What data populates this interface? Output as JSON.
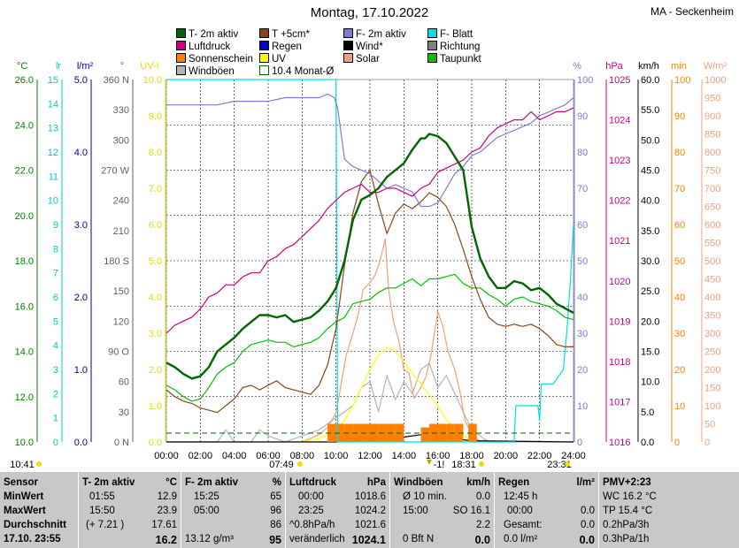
{
  "header": {
    "title": "Montag, 17.10.2022",
    "station": "MA - Seckenheim"
  },
  "legend": [
    {
      "label": "T- 2m aktiv",
      "color": "#006400",
      "kind": "filled"
    },
    {
      "label": "T +5cm*",
      "color": "#8b4513",
      "kind": "filled"
    },
    {
      "label": "F- 2m aktiv",
      "color": "#7b7bd6",
      "kind": "filled"
    },
    {
      "label": "F- Blatt",
      "color": "#00e0e0",
      "kind": "filled"
    },
    {
      "label": "Luftdruck",
      "color": "#d0007a",
      "kind": "filled"
    },
    {
      "label": "Regen",
      "color": "#0000d0",
      "kind": "filled"
    },
    {
      "label": "Wind*",
      "color": "#000000",
      "kind": "filled"
    },
    {
      "label": "Richtung",
      "color": "#808080",
      "kind": "filled"
    },
    {
      "label": "Sonnenschein",
      "color": "#ff8000",
      "kind": "filled"
    },
    {
      "label": "UV",
      "color": "#ffff00",
      "kind": "filled"
    },
    {
      "label": "Solar",
      "color": "#f0a080",
      "kind": "filled"
    },
    {
      "label": "Taupunkt",
      "color": "#00c000",
      "kind": "filled"
    },
    {
      "label": "Windböen",
      "color": "#b4b4b4",
      "kind": "filled"
    },
    {
      "label": "10.4 Monat-Ø",
      "color": "#006400",
      "kind": "hollow"
    }
  ],
  "axes_left": [
    {
      "unit": "°C",
      "color": "#008000",
      "ticks": [
        "26.0",
        "24.0",
        "22.0",
        "20.0",
        "18.0",
        "16.0",
        "14.0",
        "12.0",
        "10.0"
      ]
    },
    {
      "unit": "lr",
      "color": "#00c8c8",
      "ticks": [
        "15",
        "14",
        "13",
        "12",
        "11",
        "10",
        "9",
        "8",
        "7",
        "6",
        "5",
        "4",
        "3",
        "2",
        "1",
        "0"
      ]
    },
    {
      "unit": "l/m²",
      "color": "#0000a0",
      "ticks": [
        "5.0",
        "4.0",
        "3.0",
        "2.0",
        "1.0",
        "0.0"
      ]
    },
    {
      "unit": "°",
      "color": "#606060",
      "ticks": [
        "360 N",
        "330",
        "300",
        "270 W",
        "240",
        "210",
        "180 S",
        "150",
        "120",
        "90 O",
        "60",
        "30",
        "0 N"
      ]
    },
    {
      "unit": "UV-I",
      "color": "#e0e000",
      "ticks": [
        "10.0",
        "9.0",
        "8.0",
        "7.0",
        "6.0",
        "5.0",
        "4.0",
        "3.0",
        "2.0",
        "1.0",
        "0.0"
      ]
    }
  ],
  "axes_right": [
    {
      "unit": "%",
      "color": "#7b7bd6",
      "ticks": [
        "100",
        "90",
        "80",
        "70",
        "60",
        "50",
        "40",
        "30",
        "20",
        "10",
        "0"
      ]
    },
    {
      "unit": "hPa",
      "color": "#d0007a",
      "ticks": [
        "1025",
        "1024",
        "1023",
        "1022",
        "1021",
        "1020",
        "1019",
        "1018",
        "1017",
        "1016"
      ]
    },
    {
      "unit": "km/h",
      "color": "#000000",
      "ticks": [
        "60.0",
        "55.0",
        "50.0",
        "45.0",
        "40.0",
        "35.0",
        "30.0",
        "25.0",
        "20.0",
        "15.0",
        "10.0",
        "5.0",
        "0.0"
      ]
    },
    {
      "unit": "min",
      "color": "#ff8000",
      "ticks": [
        "100",
        "90",
        "80",
        "70",
        "60",
        "50",
        "40",
        "30",
        "20",
        "10",
        "0"
      ]
    },
    {
      "unit": "W/m²",
      "color": "#f0a080",
      "ticks": [
        "1000",
        "950",
        "900",
        "850",
        "800",
        "750",
        "700",
        "650",
        "600",
        "550",
        "500",
        "450",
        "400",
        "350",
        "300",
        "250",
        "200",
        "150",
        "100",
        "50",
        "0"
      ]
    }
  ],
  "time_axis": {
    "ticks": [
      "00:00",
      "02:00",
      "04:00",
      "06:00",
      "08:00",
      "10:00",
      "12:00",
      "14:00",
      "16:00",
      "18:00",
      "20:00",
      "22:00",
      "24:00"
    ]
  },
  "time_marks": {
    "moonrise": "10:41",
    "sunrise": "07:49",
    "wind_mark": "-1!",
    "sunset": "18:31",
    "moonset": "23:31"
  },
  "chart_data": {
    "type": "line",
    "x_unit": "hours",
    "xlim": [
      0,
      24
    ],
    "series": [
      {
        "name": "T- 2m aktiv",
        "axis": "°C",
        "color": "#006400",
        "ylim": [
          10,
          26
        ],
        "x": [
          0,
          0.5,
          1,
          1.5,
          2,
          2.5,
          3,
          3.5,
          4,
          4.5,
          5,
          5.5,
          6,
          6.5,
          7,
          7.5,
          8,
          8.5,
          9,
          9.5,
          10,
          10.5,
          11,
          11.5,
          12,
          12.5,
          13,
          13.5,
          14,
          14.5,
          15,
          15.25,
          15.5,
          16,
          16.5,
          17,
          17.5,
          18,
          18.5,
          19,
          19.5,
          20,
          20.5,
          21,
          21.5,
          22,
          22.5,
          23,
          23.5,
          24
        ],
        "y": [
          13.5,
          13.3,
          13.0,
          12.8,
          12.9,
          13.3,
          14.0,
          14.3,
          14.6,
          15.0,
          15.3,
          15.6,
          15.6,
          15.5,
          15.6,
          15.3,
          15.4,
          15.5,
          15.8,
          16.2,
          16.8,
          18.0,
          19.8,
          20.7,
          20.9,
          21.2,
          21.7,
          22.0,
          22.3,
          22.9,
          23.4,
          23.4,
          23.6,
          23.5,
          23.2,
          22.6,
          22.0,
          19.5,
          18.1,
          17.3,
          16.8,
          16.8,
          17.1,
          17.0,
          16.7,
          16.8,
          16.5,
          16.1,
          15.9,
          15.7
        ]
      },
      {
        "name": "T +5cm*",
        "axis": "°C",
        "color": "#8b4513",
        "ylim": [
          10,
          26
        ],
        "x": [
          0,
          0.5,
          1,
          1.5,
          2,
          2.5,
          3,
          3.5,
          4,
          4.5,
          5,
          5.5,
          6,
          6.5,
          7,
          7.5,
          8,
          8.5,
          9,
          9.5,
          10,
          10.5,
          11,
          11.5,
          12,
          12.5,
          13,
          13.5,
          14,
          14.5,
          15,
          15.5,
          16,
          16.5,
          17,
          17.5,
          18,
          18.5,
          19,
          19.5,
          20,
          20.5,
          21,
          21.5,
          22,
          22.5,
          23,
          23.5,
          24
        ],
        "y": [
          12.3,
          12.0,
          11.8,
          11.7,
          11.5,
          11.4,
          11.3,
          11.6,
          11.9,
          12.4,
          12.5,
          12.3,
          12.5,
          12.7,
          12.4,
          12.3,
          12.2,
          12.1,
          12.5,
          13.4,
          15.0,
          17.8,
          20.1,
          21.5,
          22.0,
          20.5,
          19.2,
          20.1,
          20.5,
          20.3,
          20.6,
          21.0,
          20.8,
          20.4,
          19.6,
          18.5,
          17.3,
          16.3,
          15.5,
          15.2,
          15.1,
          15.2,
          15.1,
          15.2,
          15.0,
          14.7,
          14.3,
          14.2,
          14.2
        ]
      },
      {
        "name": "F- 2m aktiv",
        "axis": "%",
        "color": "#7b7bd6",
        "ylim": [
          0,
          100
        ],
        "x": [
          0,
          1,
          2,
          3,
          4,
          5,
          6,
          7,
          8,
          9,
          9.5,
          9.9,
          10.1,
          10.5,
          11,
          11.5,
          12,
          12.5,
          13,
          13.5,
          14,
          14.5,
          15,
          15.5,
          16,
          16.5,
          17,
          17.5,
          18,
          18.5,
          19,
          19.5,
          20,
          20.5,
          21,
          21.5,
          22,
          22.5,
          23,
          23.5,
          24
        ],
        "y": [
          93,
          93,
          93,
          93,
          94,
          94,
          94,
          95,
          95,
          95,
          96,
          95,
          92,
          78,
          76,
          75,
          74,
          72,
          70,
          71,
          70,
          69,
          65,
          65,
          66,
          70,
          74,
          76,
          79,
          80,
          82,
          84,
          85,
          86,
          87,
          88,
          90,
          91,
          92,
          93,
          95
        ]
      },
      {
        "name": "F- Blatt",
        "axis": "lr",
        "color": "#00e0e0",
        "ylim": [
          0,
          15
        ],
        "x": [
          0,
          5,
          9.95,
          10.0,
          10.1,
          11,
          14,
          18,
          20.5,
          20.6,
          20.7,
          21,
          21.9,
          22,
          22.1,
          22.8,
          23.4,
          23.6,
          23.8,
          24
        ],
        "y": [
          15,
          15,
          15,
          15,
          0,
          0,
          0,
          0,
          0,
          1.5,
          1.5,
          1.5,
          1.5,
          0.9,
          2.4,
          2.4,
          3.0,
          4.5,
          6.5,
          9
        ]
      },
      {
        "name": "Luftdruck",
        "axis": "hPa",
        "color": "#d0007a",
        "ylim": [
          1016,
          1025
        ],
        "x": [
          0,
          0.5,
          1,
          1.5,
          2,
          2.5,
          3,
          3.5,
          4,
          4.5,
          5,
          5.5,
          6,
          6.5,
          7,
          7.5,
          8,
          8.5,
          9,
          9.5,
          10,
          10.5,
          11,
          11.5,
          12,
          12.5,
          13,
          13.5,
          14,
          14.5,
          15,
          15.5,
          16,
          16.5,
          17,
          17.5,
          18,
          18.5,
          19,
          19.5,
          20,
          20.5,
          21,
          21.5,
          22,
          22.5,
          23,
          23.5,
          24
        ],
        "y": [
          1018.7,
          1018.9,
          1019.0,
          1019.1,
          1019.3,
          1019.6,
          1019.7,
          1019.9,
          1019.9,
          1020.1,
          1020.2,
          1020.2,
          1020.5,
          1020.6,
          1020.8,
          1020.9,
          1021.1,
          1021.3,
          1021.5,
          1021.8,
          1022.0,
          1022.2,
          1022.3,
          1022.4,
          1022.2,
          1022.2,
          1022.3,
          1022.3,
          1022.2,
          1022.1,
          1022.3,
          1022.4,
          1022.7,
          1022.8,
          1022.9,
          1023.0,
          1023.2,
          1023.3,
          1023.6,
          1023.8,
          1023.9,
          1024.0,
          1024.0,
          1024.2,
          1024.0,
          1024.1,
          1024.2,
          1024.2,
          1024.3
        ]
      },
      {
        "name": "Taupunkt",
        "axis": "°C",
        "color": "#00c000",
        "ylim": [
          10,
          26
        ],
        "x": [
          0,
          0.5,
          1,
          1.5,
          2,
          2.5,
          3,
          3.5,
          4,
          4.5,
          5,
          5.5,
          6,
          6.5,
          7,
          7.5,
          8,
          8.5,
          9,
          9.5,
          10,
          10.5,
          11,
          11.5,
          12,
          12.5,
          13,
          13.5,
          14,
          14.5,
          15,
          15.5,
          16,
          16.5,
          17,
          17.5,
          18,
          18.5,
          19,
          19.5,
          20,
          20.5,
          21,
          21.5,
          22,
          22.5,
          23,
          23.5,
          24
        ],
        "y": [
          12.5,
          12.3,
          12.0,
          11.8,
          11.9,
          12.4,
          13.0,
          13.3,
          13.5,
          14.0,
          14.3,
          14.4,
          14.5,
          14.4,
          14.4,
          14.2,
          14.3,
          14.4,
          14.6,
          15.0,
          15.3,
          15.5,
          16.1,
          16.2,
          16.3,
          16.6,
          16.8,
          16.8,
          17.0,
          17.2,
          16.9,
          17.2,
          17.2,
          17.3,
          17.4,
          17.0,
          16.8,
          16.8,
          16.5,
          16.3,
          16.0,
          16.3,
          16.4,
          16.2,
          16.1,
          16.0,
          15.8,
          15.5,
          15.4
        ]
      },
      {
        "name": "UV",
        "axis": "UV-I",
        "color": "#ffff00",
        "ylim": [
          0,
          10
        ],
        "x": [
          8,
          9,
          10,
          10.5,
          11,
          11.5,
          12,
          12.5,
          13,
          13.5,
          14,
          14.5,
          15,
          15.5,
          16,
          16.5,
          17,
          17.5,
          18
        ],
        "y": [
          0,
          0.1,
          0.3,
          0.6,
          1.0,
          1.5,
          2.0,
          2.4,
          2.6,
          2.5,
          2.2,
          1.9,
          1.6,
          1.3,
          1.0,
          0.6,
          0.4,
          0.2,
          0
        ]
      },
      {
        "name": "Solar",
        "axis": "W/m²",
        "color": "#f0a080",
        "ylim": [
          0,
          1000
        ],
        "x": [
          8,
          9,
          9.5,
          10,
          10.3,
          10.6,
          11,
          11.3,
          11.6,
          12,
          12.3,
          12.6,
          12.9,
          13.1,
          13.4,
          13.7,
          14,
          14.3,
          14.6,
          15,
          15.3,
          15.6,
          16,
          16.3,
          16.6,
          17,
          17.3,
          17.6,
          18,
          18.5
        ],
        "y": [
          0,
          20,
          40,
          80,
          160,
          240,
          300,
          350,
          420,
          440,
          460,
          500,
          560,
          420,
          330,
          280,
          200,
          190,
          120,
          150,
          180,
          240,
          360,
          320,
          250,
          200,
          140,
          60,
          20,
          0
        ]
      },
      {
        "name": "Windböen",
        "axis": "km/h",
        "color": "#b4b4b4",
        "ylim": [
          0,
          60
        ],
        "x": [
          0,
          3,
          3.5,
          4,
          5,
          5.5,
          6,
          7,
          8,
          9,
          10,
          11,
          11.5,
          12,
          12.5,
          13,
          13.5,
          14,
          14.5,
          15,
          15.5,
          16,
          16.5,
          17,
          17.5,
          18,
          19,
          24
        ],
        "y": [
          0,
          0,
          2,
          0,
          0,
          2,
          1,
          0,
          1,
          2,
          4,
          6,
          9,
          10,
          5,
          11,
          7,
          10,
          8,
          12,
          13,
          9,
          11,
          8,
          5,
          2,
          0,
          0
        ]
      },
      {
        "name": "Wind*",
        "axis": "km/h",
        "color": "#000000",
        "ylim": [
          0,
          60
        ],
        "x": [
          0,
          10,
          11,
          12,
          13,
          14,
          15,
          16,
          17,
          18,
          24
        ],
        "y": [
          0,
          0,
          0.5,
          1,
          1.5,
          0.8,
          1.2,
          1,
          0.5,
          0.2,
          0
        ]
      },
      {
        "name": "Sonnenschein",
        "axis": "min",
        "color": "#ff8000",
        "ylim": [
          0,
          100
        ],
        "type": "bar",
        "x": [
          9.5,
          10,
          10.5,
          11,
          11.5,
          12,
          12.5,
          13,
          13.5,
          15,
          15.5,
          16,
          16.5,
          17,
          17.8
        ],
        "y": [
          5,
          5,
          5,
          5,
          5,
          5,
          5,
          5,
          5,
          4,
          5,
          5,
          5,
          5,
          5
        ]
      }
    ]
  },
  "stats": {
    "sensor": {
      "head": "Sensor",
      "rows": [
        "MinWert",
        "MaxWert",
        "Durchschnitt"
      ],
      "time": "17.10. 23:55"
    },
    "temp": {
      "head": "T- 2m aktiv",
      "unit": "°C",
      "rows": [
        [
          "01:55",
          "12.9"
        ],
        [
          "15:50",
          "23.9"
        ],
        [
          "(+ 7.21 )",
          "17.61"
        ]
      ],
      "cur": "16.2"
    },
    "hum": {
      "head": "F- 2m aktiv",
      "unit": "%",
      "rows": [
        [
          "15:25",
          "65"
        ],
        [
          "05:00",
          "96"
        ],
        [
          "",
          "86"
        ]
      ],
      "cur_l": "13.12 g/m³",
      "cur": "95"
    },
    "press": {
      "head": "Luftdruck",
      "unit": "hPa",
      "rows": [
        [
          "00:00",
          "1018.6"
        ],
        [
          "23:25",
          "1024.2"
        ],
        [
          "^0.8hPa/h",
          "1021.6"
        ]
      ],
      "cur_l": "veränderlich",
      "cur": "1024.1"
    },
    "wind": {
      "head": "Windböen",
      "unit": "km/h",
      "rows": [
        [
          "Ø 10 min.",
          "0.0"
        ],
        [
          "15:00",
          "SO 16.1"
        ],
        [
          "",
          "2.2"
        ]
      ],
      "cur_l": "0 Bft N",
      "cur": "0.0"
    },
    "rain": {
      "head": "Regen",
      "unit": "l/m²",
      "rows": [
        [
          "12:45 h",
          ""
        ],
        [
          "00:00",
          "0.0"
        ],
        [
          "Gesamt:",
          "0.0"
        ]
      ],
      "cur_l": "0.0 l/m²",
      "cur": "0.0"
    },
    "pmv": {
      "head": "PMV+2:23",
      "rows": [
        "WC 16.2 °C",
        "TP 15.4 °C",
        "0.2hPa/3h"
      ],
      "cur": "0.3hPa/1h"
    }
  }
}
